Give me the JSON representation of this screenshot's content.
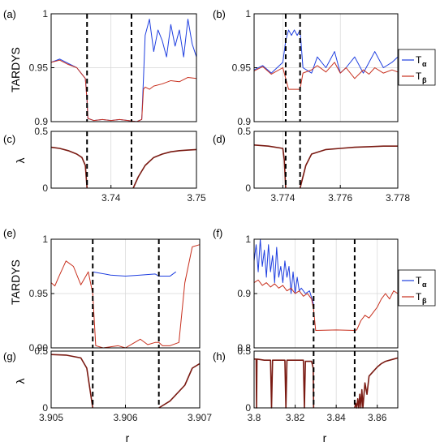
{
  "colors": {
    "alpha": "#1f3fe0",
    "beta": "#c8301e",
    "lambda": "#7a1a12",
    "grid": "#d6d6d6",
    "axis": "#000000",
    "background": "#ffffff"
  },
  "legend_labels": {
    "alpha": "T",
    "alpha_sub": "α",
    "beta": "T",
    "beta_sub": "β"
  },
  "y_labels": {
    "tardys": "TARDYS",
    "lambda": "λ"
  },
  "x_label": "r",
  "chart_data": [
    {
      "panel": "(a)",
      "type": "line",
      "ylabel": "TARDYS",
      "xlim": [
        3.733,
        3.75
      ],
      "ylim": [
        0.9,
        1
      ],
      "yticks": [
        {
          "v": 0.9,
          "label": "0.9"
        },
        {
          "v": 0.95,
          "label": "0.95"
        },
        {
          "v": 1,
          "label": "1"
        }
      ],
      "xticks": [],
      "grid_x": [
        3.74,
        3.75
      ],
      "dashed_x": [
        3.7372,
        3.7424
      ],
      "series": [
        {
          "name": "Tα",
          "color": "alpha",
          "x": [
            3.733,
            3.734,
            3.735,
            3.736,
            3.7365,
            3.737,
            3.7372,
            3.7373,
            3.738,
            3.739,
            3.74,
            3.741,
            3.742,
            3.743,
            3.7436,
            3.7438,
            3.744,
            3.7445,
            3.745,
            3.7455,
            3.746,
            3.7465,
            3.747,
            3.7475,
            3.748,
            3.7485,
            3.749,
            3.7495,
            3.75
          ],
          "y": [
            0.955,
            0.958,
            0.954,
            0.95,
            0.945,
            0.94,
            0.92,
            0.903,
            0.901,
            0.902,
            0.901,
            0.902,
            0.901,
            0.9,
            0.902,
            0.94,
            0.98,
            0.995,
            0.965,
            0.985,
            0.975,
            0.96,
            0.99,
            0.97,
            0.985,
            0.96,
            0.995,
            0.972,
            0.96
          ]
        },
        {
          "name": "Tβ",
          "color": "beta",
          "x": [
            3.733,
            3.734,
            3.735,
            3.736,
            3.7365,
            3.737,
            3.7372,
            3.7373,
            3.738,
            3.739,
            3.74,
            3.741,
            3.742,
            3.743,
            3.7436,
            3.7438,
            3.744,
            3.7445,
            3.745,
            3.746,
            3.747,
            3.748,
            3.749,
            3.75
          ],
          "y": [
            0.955,
            0.957,
            0.953,
            0.95,
            0.945,
            0.94,
            0.92,
            0.903,
            0.901,
            0.902,
            0.901,
            0.902,
            0.901,
            0.9,
            0.902,
            0.93,
            0.932,
            0.93,
            0.933,
            0.935,
            0.938,
            0.937,
            0.941,
            0.94
          ]
        }
      ]
    },
    {
      "panel": "(b)",
      "type": "line",
      "xlim": [
        3.773,
        3.778
      ],
      "ylim": [
        0.9,
        1
      ],
      "yticks": [
        {
          "v": 0.9,
          "label": "0.9"
        },
        {
          "v": 0.95,
          "label": "0.95"
        },
        {
          "v": 1,
          "label": "1"
        }
      ],
      "xticks": [],
      "grid_x": [
        3.774,
        3.776
      ],
      "dashed_x": [
        3.7741,
        3.7746
      ],
      "series": [
        {
          "name": "Tα",
          "color": "alpha",
          "x": [
            3.773,
            3.7733,
            3.7736,
            3.774,
            3.7741,
            3.7742,
            3.7743,
            3.7744,
            3.7745,
            3.7746,
            3.7747,
            3.775,
            3.7752,
            3.7755,
            3.7758,
            3.776,
            3.7762,
            3.7765,
            3.7768,
            3.777,
            3.7772,
            3.7775,
            3.7778,
            3.778
          ],
          "y": [
            0.948,
            0.952,
            0.945,
            0.955,
            0.975,
            0.985,
            0.98,
            0.985,
            0.98,
            0.985,
            0.95,
            0.945,
            0.96,
            0.95,
            0.965,
            0.945,
            0.95,
            0.96,
            0.945,
            0.955,
            0.965,
            0.95,
            0.955,
            0.96
          ]
        },
        {
          "name": "Tβ",
          "color": "beta",
          "x": [
            3.773,
            3.7733,
            3.7736,
            3.774,
            3.7741,
            3.7742,
            3.7744,
            3.7746,
            3.7747,
            3.775,
            3.7752,
            3.7755,
            3.7758,
            3.776,
            3.7762,
            3.7765,
            3.7768,
            3.777,
            3.7772,
            3.7775,
            3.7778,
            3.778
          ],
          "y": [
            0.947,
            0.951,
            0.944,
            0.95,
            0.94,
            0.93,
            0.93,
            0.93,
            0.945,
            0.948,
            0.952,
            0.946,
            0.955,
            0.945,
            0.95,
            0.94,
            0.948,
            0.944,
            0.95,
            0.945,
            0.948,
            0.946
          ]
        }
      ]
    },
    {
      "panel": "(c)",
      "type": "line",
      "ylabel": "λ",
      "xlim": [
        3.733,
        3.75
      ],
      "ylim": [
        0,
        0.5
      ],
      "yticks": [
        {
          "v": 0,
          "label": "0"
        },
        {
          "v": 0.5,
          "label": "0.5"
        }
      ],
      "xticks": [
        {
          "v": 3.74,
          "label": "3.74"
        },
        {
          "v": 3.75,
          "label": "3.75"
        }
      ],
      "grid_x": [
        3.74,
        3.75
      ],
      "dashed_x": [
        3.7372,
        3.7424
      ],
      "series": [
        {
          "name": "λ",
          "color": "lambda",
          "x": [
            3.733,
            3.734,
            3.735,
            3.736,
            3.7366,
            3.737,
            3.7372
          ],
          "y": [
            0.36,
            0.35,
            0.33,
            0.3,
            0.27,
            0.2,
            0.0
          ]
        },
        {
          "name": "λ",
          "color": "lambda",
          "x": [
            3.7426,
            3.7432,
            3.744,
            3.745,
            3.746,
            3.747,
            3.748,
            3.749,
            3.75
          ],
          "y": [
            0.0,
            0.1,
            0.2,
            0.27,
            0.3,
            0.32,
            0.33,
            0.335,
            0.34
          ]
        }
      ]
    },
    {
      "panel": "(d)",
      "type": "line",
      "xlim": [
        3.773,
        3.778
      ],
      "ylim": [
        0,
        0.5
      ],
      "yticks": [
        {
          "v": 0,
          "label": "0"
        },
        {
          "v": 0.5,
          "label": "0.5"
        }
      ],
      "xticks": [
        {
          "v": 3.774,
          "label": "3.774"
        },
        {
          "v": 3.776,
          "label": "3.776"
        },
        {
          "v": 3.778,
          "label": "3.778"
        }
      ],
      "grid_x": [
        3.774,
        3.776
      ],
      "dashed_x": [
        3.7741,
        3.7746
      ],
      "series": [
        {
          "name": "λ",
          "color": "lambda",
          "x": [
            3.773,
            3.7735,
            3.774,
            3.77405,
            3.7741
          ],
          "y": [
            0.38,
            0.37,
            0.35,
            0.25,
            0.0
          ]
        },
        {
          "name": "λ",
          "color": "lambda",
          "x": [
            3.7746,
            3.7748,
            3.775,
            3.7755,
            3.776,
            3.7765,
            3.777,
            3.7775,
            3.778
          ],
          "y": [
            0.0,
            0.2,
            0.3,
            0.34,
            0.35,
            0.36,
            0.365,
            0.37,
            0.37
          ]
        }
      ]
    },
    {
      "panel": "(e)",
      "type": "line",
      "ylabel": "TARDYS",
      "xlim": [
        3.905,
        3.907
      ],
      "ylim": [
        0.9,
        1
      ],
      "yticks": [
        {
          "v": 0.9,
          "label": "0.90"
        },
        {
          "v": 0.95,
          "label": "0.95"
        },
        {
          "v": 1,
          "label": "1"
        }
      ],
      "xticks": [],
      "grid_x": [
        3.906,
        3.907
      ],
      "dashed_x": [
        3.90556,
        3.90645
      ],
      "series": [
        {
          "name": "Tα",
          "color": "alpha",
          "x": [
            3.90556,
            3.9058,
            3.906,
            3.9062,
            3.9064,
            3.90645,
            3.9066,
            3.90668
          ],
          "y": [
            0.97,
            0.967,
            0.966,
            0.967,
            0.968,
            0.966,
            0.966,
            0.97
          ]
        },
        {
          "name": "Tβ",
          "color": "beta",
          "x": [
            3.905,
            3.90505,
            3.9051,
            3.9052,
            3.9053,
            3.9054,
            3.9055,
            3.90556,
            3.9056,
            3.9057,
            3.9059,
            3.906,
            3.9061,
            3.9062,
            3.9063,
            3.9064,
            3.90645,
            3.9065,
            3.9066,
            3.90672,
            3.9068,
            3.9069,
            3.907
          ],
          "y": [
            0.96,
            0.957,
            0.965,
            0.98,
            0.975,
            0.958,
            0.97,
            0.95,
            0.902,
            0.9,
            0.902,
            0.9,
            0.904,
            0.908,
            0.903,
            0.905,
            0.905,
            0.902,
            0.902,
            0.905,
            0.96,
            0.993,
            0.995
          ]
        }
      ]
    },
    {
      "panel": "(f)",
      "type": "line",
      "xlim": [
        3.8,
        3.87
      ],
      "ylim": [
        0.8,
        1
      ],
      "yticks": [
        {
          "v": 0.8,
          "label": "0.8"
        },
        {
          "v": 0.9,
          "label": "0.9"
        },
        {
          "v": 1,
          "label": "1"
        }
      ],
      "xticks": [],
      "grid_x": [
        3.82,
        3.84,
        3.86
      ],
      "dashed_x": [
        3.829,
        3.849
      ],
      "series": [
        {
          "name": "Tα",
          "color": "alpha",
          "x": [
            3.8,
            3.801,
            3.802,
            3.803,
            3.804,
            3.805,
            3.806,
            3.807,
            3.808,
            3.809,
            3.81,
            3.811,
            3.812,
            3.813,
            3.814,
            3.815,
            3.816,
            3.817,
            3.818,
            3.819,
            3.82,
            3.821,
            3.822,
            3.823,
            3.825,
            3.827,
            3.829
          ],
          "y": [
            0.96,
            0.99,
            0.94,
            1.0,
            0.95,
            0.98,
            0.93,
            0.99,
            0.94,
            0.97,
            0.92,
            0.985,
            0.93,
            0.95,
            0.92,
            0.96,
            0.93,
            0.95,
            0.9,
            0.94,
            0.9,
            0.93,
            0.905,
            0.91,
            0.9,
            0.905,
            0.88
          ]
        },
        {
          "name": "Tβ",
          "color": "beta",
          "x": [
            3.8,
            3.802,
            3.804,
            3.806,
            3.808,
            3.81,
            3.812,
            3.814,
            3.816,
            3.818,
            3.82,
            3.822,
            3.824,
            3.826,
            3.828,
            3.829,
            3.83,
            3.84,
            3.849,
            3.85,
            3.852,
            3.854,
            3.856,
            3.858,
            3.86,
            3.862,
            3.864,
            3.866,
            3.868,
            3.87
          ],
          "y": [
            0.92,
            0.925,
            0.915,
            0.92,
            0.912,
            0.918,
            0.91,
            0.915,
            0.905,
            0.91,
            0.9,
            0.905,
            0.895,
            0.9,
            0.89,
            0.87,
            0.832,
            0.833,
            0.832,
            0.833,
            0.85,
            0.86,
            0.855,
            0.865,
            0.875,
            0.89,
            0.9,
            0.89,
            0.905,
            0.9
          ]
        }
      ]
    },
    {
      "panel": "(g)",
      "type": "line",
      "ylabel": "λ",
      "xlim": [
        3.905,
        3.907
      ],
      "ylim": [
        0,
        0.5
      ],
      "yticks": [
        {
          "v": 0,
          "label": "0"
        },
        {
          "v": 0.5,
          "label": "0.5"
        }
      ],
      "xticks": [
        {
          "v": 3.905,
          "label": "3.905"
        },
        {
          "v": 3.906,
          "label": "3.906"
        },
        {
          "v": 3.907,
          "label": "3.907"
        }
      ],
      "grid_x": [
        3.906,
        3.907
      ],
      "dashed_x": [
        3.90556,
        3.90645
      ],
      "series": [
        {
          "name": "λ",
          "color": "lambda",
          "x": [
            3.905,
            3.9052,
            3.9054,
            3.90548,
            3.90556
          ],
          "y": [
            0.47,
            0.465,
            0.44,
            0.35,
            0.0
          ]
        },
        {
          "name": "λ",
          "color": "lambda",
          "x": [
            3.90645,
            3.9066,
            3.9068,
            3.9069,
            3.907
          ],
          "y": [
            0.0,
            0.06,
            0.2,
            0.35,
            0.39
          ]
        }
      ]
    },
    {
      "panel": "(h)",
      "type": "line",
      "xlim": [
        3.8,
        3.87
      ],
      "ylim": [
        0,
        0.5
      ],
      "yticks": [
        {
          "v": 0,
          "label": "0"
        },
        {
          "v": 0.5,
          "label": "0.5"
        }
      ],
      "xticks": [
        {
          "v": 3.8,
          "label": "3.8"
        },
        {
          "v": 3.82,
          "label": "3.82"
        },
        {
          "v": 3.84,
          "label": "3.84"
        },
        {
          "v": 3.86,
          "label": "3.86"
        }
      ],
      "grid_x": [
        3.82,
        3.84,
        3.86
      ],
      "dashed_x": [
        3.829,
        3.849
      ],
      "series": [
        {
          "name": "λ",
          "color": "lambda",
          "x": [
            3.8,
            3.801,
            3.8012,
            3.8014,
            3.805,
            3.808,
            3.8085,
            3.809,
            3.812,
            3.815,
            3.8155,
            3.816,
            3.82,
            3.824,
            3.8245,
            3.825,
            3.828,
            3.8288,
            3.829
          ],
          "y": [
            0.43,
            0.43,
            0.0,
            0.43,
            0.42,
            0.42,
            0.0,
            0.42,
            0.42,
            0.42,
            0.0,
            0.42,
            0.42,
            0.42,
            0.0,
            0.41,
            0.41,
            0.35,
            0.0
          ]
        },
        {
          "name": "λ",
          "color": "lambda",
          "x": [
            3.849,
            3.8495,
            3.85,
            3.8505,
            3.851,
            3.8515,
            3.852,
            3.8525,
            3.853,
            3.854,
            3.855,
            3.856,
            3.858,
            3.86,
            3.862,
            3.864,
            3.866,
            3.868,
            3.87
          ],
          "y": [
            0.0,
            0.04,
            0.0,
            0.08,
            0.0,
            0.12,
            0.0,
            0.16,
            0.0,
            0.22,
            0.12,
            0.28,
            0.32,
            0.36,
            0.39,
            0.41,
            0.42,
            0.43,
            0.44
          ]
        }
      ]
    }
  ]
}
